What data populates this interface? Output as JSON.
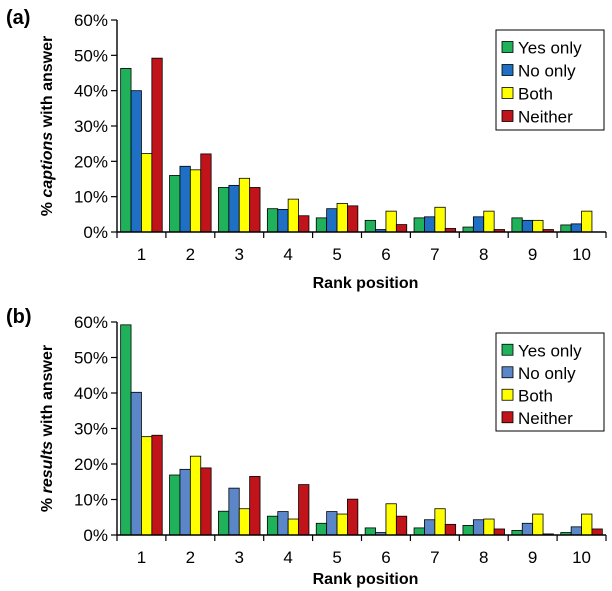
{
  "chart_data": [
    {
      "type": "bar",
      "panel_label": "(a)",
      "ylabel_prefix": "% ",
      "ylabel_italic": "captions",
      "ylabel_suffix": " with answer",
      "xlabel": "Rank position",
      "categories": [
        "1",
        "2",
        "3",
        "4",
        "5",
        "6",
        "7",
        "8",
        "9",
        "10"
      ],
      "ylim": [
        0,
        60
      ],
      "yticks": [
        "0%",
        "10%",
        "20%",
        "30%",
        "40%",
        "50%",
        "60%"
      ],
      "legend_position": "top-right",
      "grid": false,
      "series": [
        {
          "name": "Yes only",
          "color": "#1fb25a",
          "values": [
            46.3,
            16,
            12.6,
            6.6,
            4,
            3.3,
            4,
            1.4,
            4,
            2
          ]
        },
        {
          "name": "No only",
          "color": "#1f6fc4",
          "values": [
            40,
            18.6,
            13.2,
            6.4,
            6.6,
            0.7,
            4.3,
            4.3,
            3.3,
            2.3
          ]
        },
        {
          "name": "Both",
          "color": "#ffff00",
          "values": [
            22.2,
            17.6,
            15.2,
            9.3,
            8.1,
            5.9,
            7,
            5.9,
            3.3,
            5.9
          ]
        },
        {
          "name": "Neither",
          "color": "#c0141a",
          "values": [
            49.2,
            22.1,
            12.6,
            4.6,
            7.4,
            2.1,
            1,
            0.7,
            0.7,
            0
          ]
        }
      ]
    },
    {
      "type": "bar",
      "panel_label": "(b)",
      "ylabel_prefix": "% ",
      "ylabel_italic": "results",
      "ylabel_suffix": " with answer",
      "xlabel": "Rank position",
      "categories": [
        "1",
        "2",
        "3",
        "4",
        "5",
        "6",
        "7",
        "8",
        "9",
        "10"
      ],
      "ylim": [
        0,
        60
      ],
      "yticks": [
        "0%",
        "10%",
        "20%",
        "30%",
        "40%",
        "50%",
        "60%"
      ],
      "legend_position": "top-right",
      "grid": false,
      "series": [
        {
          "name": "Yes only",
          "color": "#1fb25a",
          "values": [
            59.2,
            16.9,
            6.7,
            5.3,
            3.3,
            2,
            2,
            2.7,
            1.3,
            0.7
          ]
        },
        {
          "name": "No only",
          "color": "#5b87c9",
          "values": [
            40.2,
            18.5,
            13.2,
            6.6,
            6.6,
            0.7,
            4.3,
            4.3,
            3.3,
            2.3
          ]
        },
        {
          "name": "Both",
          "color": "#ffff00",
          "values": [
            27.7,
            22.2,
            7.4,
            4.5,
            5.9,
            8.8,
            7.4,
            4.5,
            5.9,
            5.9
          ]
        },
        {
          "name": "Neither",
          "color": "#c0141a",
          "values": [
            28.1,
            18.9,
            16.5,
            14.2,
            10.1,
            5.3,
            3,
            1.7,
            0.3,
            1.7
          ]
        }
      ]
    }
  ]
}
